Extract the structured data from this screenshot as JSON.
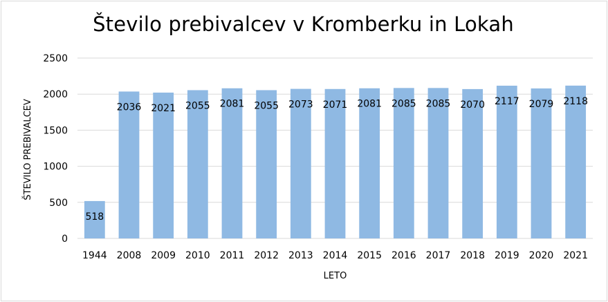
{
  "chart_data": {
    "type": "bar",
    "title": "Število prebivalcev v Kromberku in Lokah",
    "xlabel": "LETO",
    "ylabel": "ŠTEVILO PREBIVALCEV",
    "categories": [
      "1944",
      "2008",
      "2009",
      "2010",
      "2011",
      "2012",
      "2013",
      "2014",
      "2015",
      "2016",
      "2017",
      "2018",
      "2019",
      "2020",
      "2021"
    ],
    "values": [
      518,
      2036,
      2021,
      2055,
      2081,
      2055,
      2073,
      2071,
      2081,
      2085,
      2085,
      2070,
      2117,
      2079,
      2118
    ],
    "ylim": [
      0,
      2500
    ],
    "yticks": [
      0,
      500,
      1000,
      1500,
      2000,
      2500
    ],
    "grid": true,
    "bar_color": "#8fb9e3",
    "grid_color": "#d9d9d9",
    "legend": false,
    "data_labels": true
  }
}
